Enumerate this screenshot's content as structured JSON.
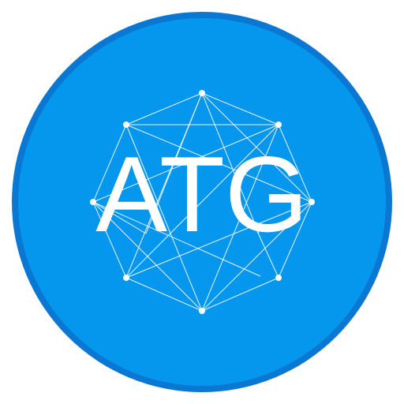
{
  "logo": {
    "text": "ATG",
    "colors": {
      "ring": "#0a78d2",
      "fill": "#0596ee",
      "network": "#ffffff",
      "text": "#ffffff"
    }
  }
}
